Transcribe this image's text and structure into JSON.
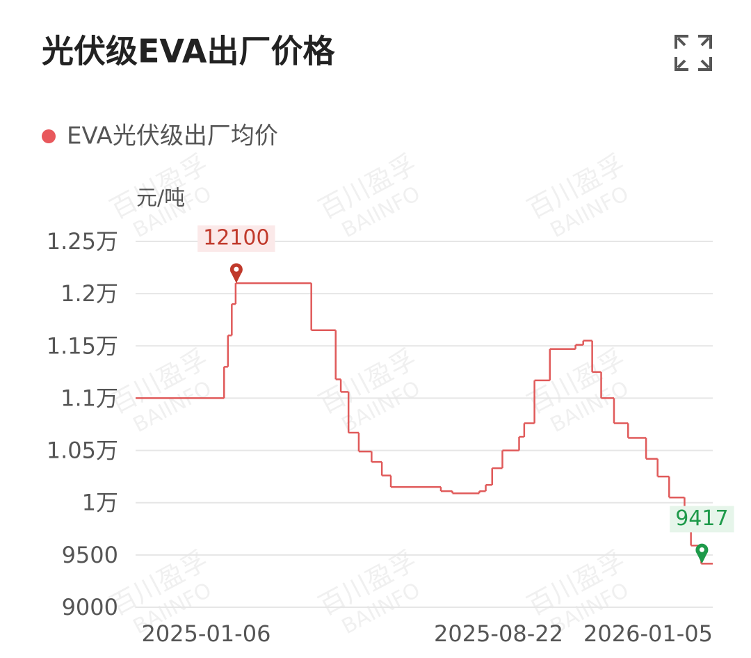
{
  "title": "光伏级EVA出厂价格",
  "chart_data": {
    "type": "step-line",
    "y_label": "元/吨",
    "watermark": [
      "百川盈孚",
      "BAIINFO"
    ],
    "xlim": [
      "2024-11-12",
      "2026-02-05"
    ],
    "xticks": [
      "2025-01-06",
      "2025-08-22",
      "2026-01-05"
    ],
    "ylim": [
      9000,
      12500
    ],
    "yticks": [
      {
        "value": 12500,
        "label": "1.25万"
      },
      {
        "value": 12000,
        "label": "1.2万"
      },
      {
        "value": 11500,
        "label": "1.15万"
      },
      {
        "value": 11000,
        "label": "1.1万"
      },
      {
        "value": 10500,
        "label": "1.05万"
      },
      {
        "value": 10000,
        "label": "1万"
      },
      9500,
      9000
    ],
    "grid": true,
    "series": [
      {
        "name": "EVA光伏级出厂均价",
        "color": "#e05a5a",
        "x": [
          "2024-11-12",
          "2025-01-20",
          "2025-01-23",
          "2025-01-26",
          "2025-01-29",
          "2025-03-29",
          "2025-04-17",
          "2025-04-21",
          "2025-04-27",
          "2025-05-05",
          "2025-05-15",
          "2025-05-23",
          "2025-05-30",
          "2025-07-08",
          "2025-07-17",
          "2025-08-07",
          "2025-08-12",
          "2025-08-17",
          "2025-08-25",
          "2025-09-07",
          "2025-09-11",
          "2025-09-19",
          "2025-10-01",
          "2025-10-21",
          "2025-10-27",
          "2025-11-03",
          "2025-11-10",
          "2025-11-20",
          "2025-12-01",
          "2025-12-15",
          "2025-12-24",
          "2026-01-02",
          "2026-01-14",
          "2026-01-19",
          "2026-01-27"
        ],
        "values": [
          11000,
          11300,
          11600,
          11900,
          12100,
          11650,
          11180,
          11060,
          10670,
          10490,
          10390,
          10260,
          10150,
          10110,
          10090,
          10110,
          10170,
          10330,
          10500,
          10630,
          10760,
          11170,
          11470,
          11510,
          11550,
          11250,
          11000,
          10760,
          10620,
          10420,
          10250,
          10050,
          9880,
          9590,
          9417
        ]
      }
    ],
    "max_color": "#c0392b",
    "min_color": "#1e9a4a"
  }
}
